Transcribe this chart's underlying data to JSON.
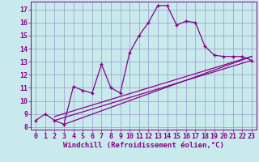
{
  "xlabel": "Windchill (Refroidissement éolien,°C)",
  "background_color": "#c8eaec",
  "grid_color": "#a0a8cc",
  "line_color": "#880088",
  "x_ticks": [
    0,
    1,
    2,
    3,
    4,
    5,
    6,
    7,
    8,
    9,
    10,
    11,
    12,
    13,
    14,
    15,
    16,
    17,
    18,
    19,
    20,
    21,
    22,
    23
  ],
  "y_ticks": [
    8,
    9,
    10,
    11,
    12,
    13,
    14,
    15,
    16,
    17
  ],
  "ylim": [
    7.8,
    17.6
  ],
  "xlim": [
    -0.5,
    23.5
  ],
  "line1_x": [
    0,
    1,
    2,
    3,
    4,
    5,
    6,
    7,
    8,
    9,
    10,
    11,
    12,
    13,
    14,
    15,
    16,
    17,
    18,
    19,
    20,
    21,
    22,
    23
  ],
  "line1_y": [
    8.5,
    9.0,
    8.5,
    8.2,
    11.1,
    10.8,
    10.6,
    12.8,
    11.0,
    10.6,
    13.7,
    15.0,
    16.0,
    17.3,
    17.3,
    15.8,
    16.1,
    16.0,
    14.2,
    13.5,
    13.4,
    13.4,
    13.4,
    13.1
  ],
  "line2_x": [
    2,
    23
  ],
  "line2_y": [
    8.5,
    13.1
  ],
  "line3_x": [
    2,
    23
  ],
  "line3_y": [
    8.8,
    13.4
  ],
  "line4_x": [
    3,
    23
  ],
  "line4_y": [
    8.2,
    13.4
  ],
  "font_family": "monospace",
  "xlabel_fontsize": 6.5,
  "tick_fontsize": 6
}
